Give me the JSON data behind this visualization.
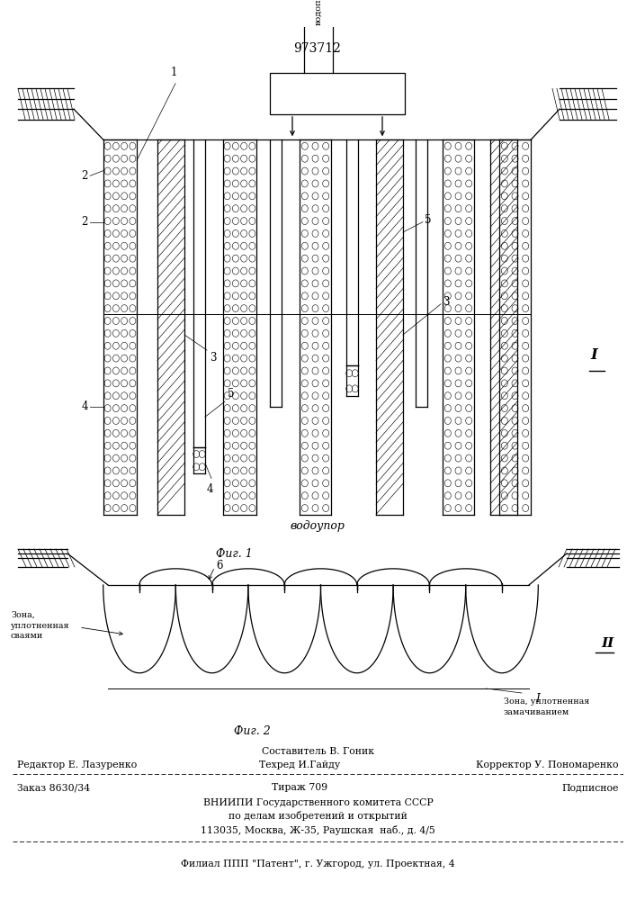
{
  "title": "973712",
  "bg_color": "#ffffff",
  "line_color": "#000000",
  "fig1_label": "Фиг. 1",
  "fig2_label": "Фиг. 2",
  "vodoprovod_label": "водопровод",
  "vodoupor_label": "водоупор",
  "zona_svai_label": "Зона,\nуплотненная\nсваями",
  "zona_zamach_label": "Зона, уплотненная\nзамачиванием",
  "roman1": "I",
  "roman2": "II",
  "footer_line1": "Составитель В. Гоник",
  "footer_line2_left": "Редактор Е. Лазуренко",
  "footer_line2_mid": "Техред И.Гайду",
  "footer_line2_right": "Корректор У. Пономаренко",
  "footer_line3_left": "Заказ 8630/34",
  "footer_line3_mid": "Тираж 709",
  "footer_line3_right": "Подписное",
  "footer_line4": "ВНИИПИ Государственного комитета СССР",
  "footer_line5": "по делам изобретений и открытий",
  "footer_line6": "113035, Москва, Ж-35, Раушская  наб., д. 4/5",
  "footer_line7": "Филиал ППП \"Патент\", г. Ужгород, ул. Проектная, 4"
}
